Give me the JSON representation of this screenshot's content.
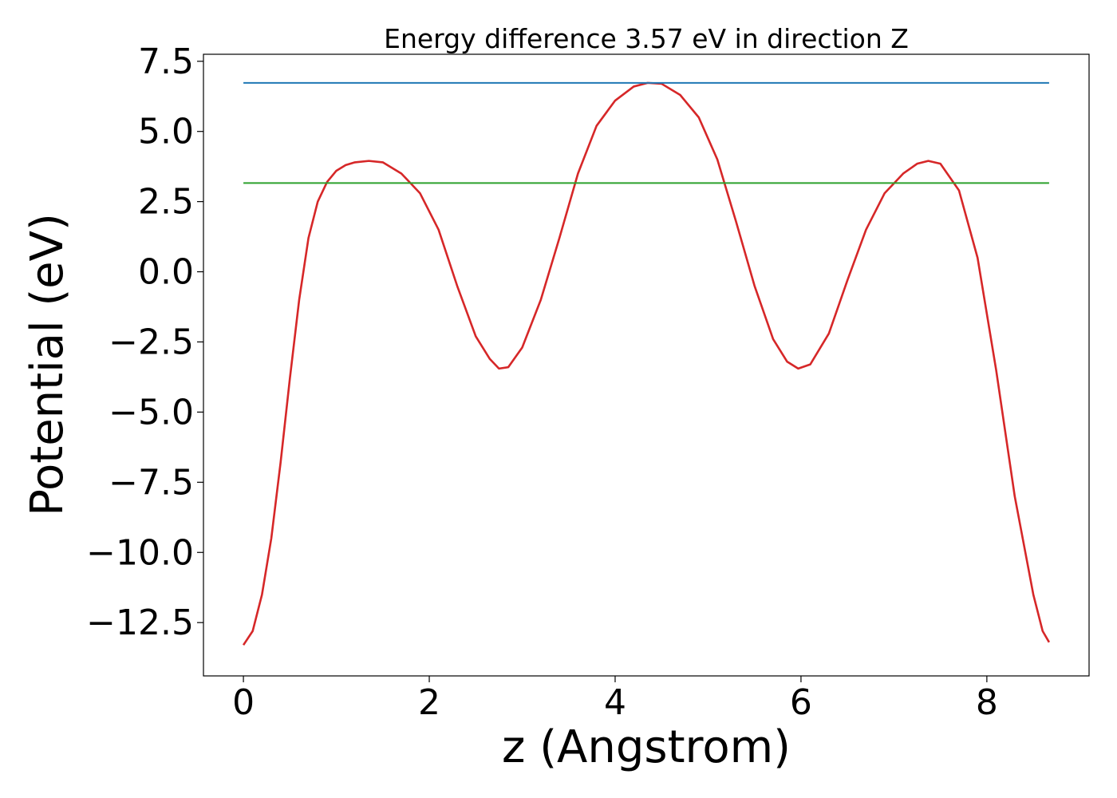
{
  "chart_data": {
    "type": "line",
    "title": "Energy difference 3.57 eV in direction Z",
    "xlabel": "z (Angstrom)",
    "ylabel": "Potential (eV)",
    "xlim": [
      -0.43,
      9.1
    ],
    "ylim": [
      -14.4,
      7.75
    ],
    "xticks": [
      0,
      2,
      4,
      6,
      8
    ],
    "xtick_labels": [
      "0",
      "2",
      "4",
      "6",
      "8"
    ],
    "yticks": [
      7.5,
      5.0,
      2.5,
      0.0,
      -2.5,
      -5.0,
      -7.5,
      -10.0,
      -12.5
    ],
    "ytick_labels": [
      "7.5",
      "5.0",
      "2.5",
      "0.0",
      "−2.5",
      "−5.0",
      "−7.5",
      "−10.0",
      "−12.5"
    ],
    "grid": false,
    "legend": "none",
    "series": [
      {
        "color": "#d62728",
        "x": [
          0.0,
          0.1,
          0.2,
          0.3,
          0.4,
          0.5,
          0.6,
          0.7,
          0.8,
          0.9,
          1.0,
          1.1,
          1.2,
          1.35,
          1.5,
          1.7,
          1.9,
          2.1,
          2.3,
          2.5,
          2.65,
          2.75,
          2.85,
          3.0,
          3.2,
          3.4,
          3.6,
          3.8,
          4.0,
          4.2,
          4.35,
          4.5,
          4.7,
          4.9,
          5.1,
          5.3,
          5.5,
          5.7,
          5.85,
          5.97,
          6.1,
          6.3,
          6.5,
          6.7,
          6.9,
          7.1,
          7.25,
          7.37,
          7.5,
          7.7,
          7.9,
          8.1,
          8.3,
          8.5,
          8.6,
          8.67
        ],
        "y": [
          -13.3,
          -12.8,
          -11.5,
          -9.5,
          -6.8,
          -3.8,
          -1.0,
          1.2,
          2.5,
          3.2,
          3.6,
          3.8,
          3.9,
          3.95,
          3.9,
          3.5,
          2.8,
          1.5,
          -0.5,
          -2.3,
          -3.1,
          -3.45,
          -3.4,
          -2.7,
          -1.0,
          1.2,
          3.5,
          5.2,
          6.1,
          6.6,
          6.73,
          6.7,
          6.3,
          5.5,
          4.0,
          1.8,
          -0.5,
          -2.4,
          -3.2,
          -3.45,
          -3.3,
          -2.2,
          -0.3,
          1.5,
          2.8,
          3.5,
          3.85,
          3.95,
          3.85,
          2.9,
          0.5,
          -3.5,
          -8.0,
          -11.5,
          -12.8,
          -13.2
        ]
      },
      {
        "color": "#1f77b4",
        "x": [
          0.0,
          8.67
        ],
        "y": [
          6.73,
          6.73
        ]
      },
      {
        "color": "#2ca02c",
        "x": [
          0.0,
          8.67
        ],
        "y": [
          3.16,
          3.16
        ]
      }
    ]
  }
}
